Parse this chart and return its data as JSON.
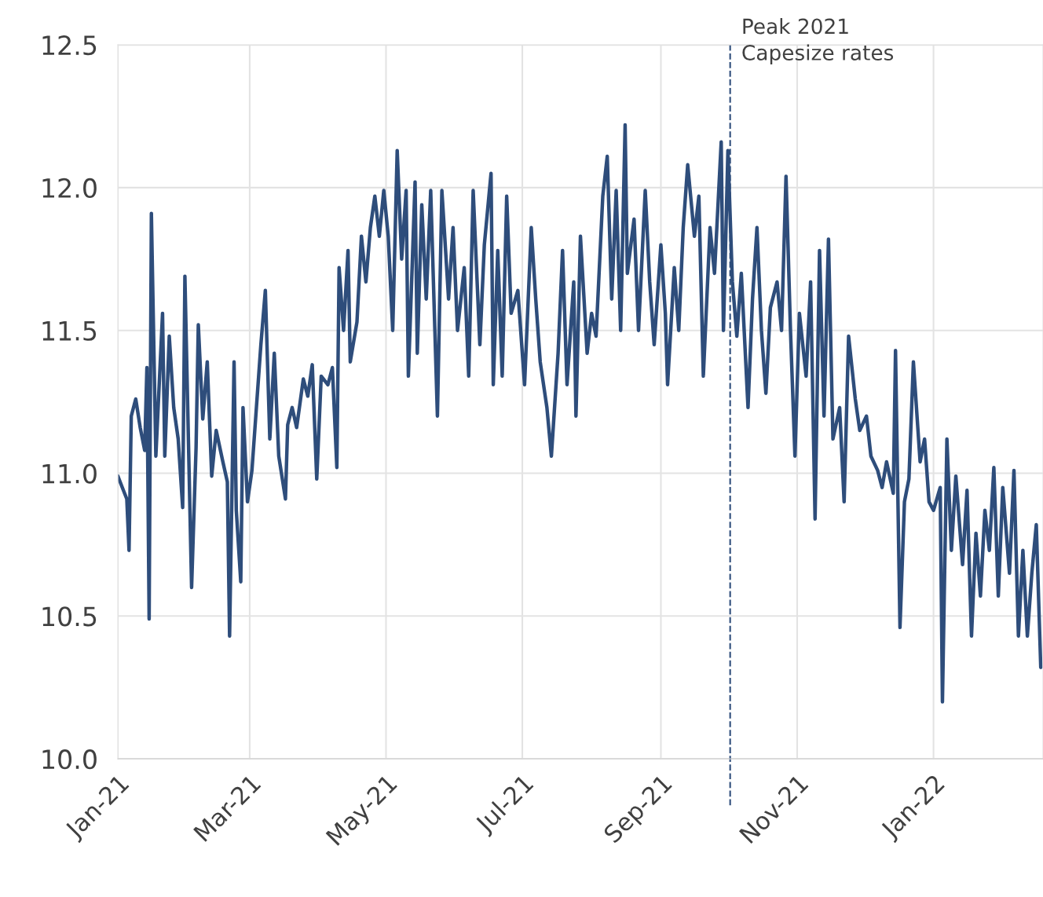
{
  "chart_data": {
    "type": "line",
    "x": [
      "2021-01-01",
      "2021-01-03",
      "2021-01-05",
      "2021-01-06",
      "2021-01-07",
      "2021-01-09",
      "2021-01-11",
      "2021-01-13",
      "2021-01-14",
      "2021-01-15",
      "2021-01-16",
      "2021-01-18",
      "2021-01-21",
      "2021-01-22",
      "2021-01-24",
      "2021-01-26",
      "2021-01-28",
      "2021-01-30",
      "2021-01-31",
      "2021-02-03",
      "2021-02-05",
      "2021-02-06",
      "2021-02-08",
      "2021-02-10",
      "2021-02-12",
      "2021-02-14",
      "2021-02-17",
      "2021-02-19",
      "2021-02-20",
      "2021-02-22",
      "2021-02-23",
      "2021-02-25",
      "2021-02-26",
      "2021-02-28",
      "2021-03-02",
      "2021-03-04",
      "2021-03-06",
      "2021-03-08",
      "2021-03-10",
      "2021-03-12",
      "2021-03-14",
      "2021-03-17",
      "2021-03-18",
      "2021-03-20",
      "2021-03-22",
      "2021-03-25",
      "2021-03-27",
      "2021-03-29",
      "2021-03-31",
      "2021-04-02",
      "2021-04-05",
      "2021-04-07",
      "2021-04-09",
      "2021-04-10",
      "2021-04-12",
      "2021-04-14",
      "2021-04-15",
      "2021-04-18",
      "2021-04-20",
      "2021-04-22",
      "2021-04-24",
      "2021-04-26",
      "2021-04-28",
      "2021-04-30",
      "2021-05-02",
      "2021-05-04",
      "2021-05-06",
      "2021-05-08",
      "2021-05-10",
      "2021-05-11",
      "2021-05-14",
      "2021-05-15",
      "2021-05-17",
      "2021-05-19",
      "2021-05-21",
      "2021-05-24",
      "2021-05-26",
      "2021-05-29",
      "2021-05-31",
      "2021-06-02",
      "2021-06-05",
      "2021-06-07",
      "2021-06-09",
      "2021-06-12",
      "2021-06-14",
      "2021-06-17",
      "2021-06-18",
      "2021-06-20",
      "2021-06-22",
      "2021-06-24",
      "2021-06-26",
      "2021-06-29",
      "2021-07-02",
      "2021-07-05",
      "2021-07-07",
      "2021-07-09",
      "2021-07-12",
      "2021-07-14",
      "2021-07-17",
      "2021-07-19",
      "2021-07-21",
      "2021-07-24",
      "2021-07-25",
      "2021-07-27",
      "2021-07-30",
      "2021-08-01",
      "2021-08-03",
      "2021-08-06",
      "2021-08-08",
      "2021-08-10",
      "2021-08-12",
      "2021-08-14",
      "2021-08-16",
      "2021-08-17",
      "2021-08-20",
      "2021-08-22",
      "2021-08-25",
      "2021-08-27",
      "2021-08-29",
      "2021-09-01",
      "2021-09-03",
      "2021-09-04",
      "2021-09-07",
      "2021-09-09",
      "2021-09-11",
      "2021-09-13",
      "2021-09-16",
      "2021-09-18",
      "2021-09-20",
      "2021-09-23",
      "2021-09-25",
      "2021-09-28",
      "2021-09-29",
      "2021-10-01",
      "2021-10-03",
      "2021-10-05",
      "2021-10-07",
      "2021-10-10",
      "2021-10-12",
      "2021-10-14",
      "2021-10-16",
      "2021-10-18",
      "2021-10-20",
      "2021-10-23",
      "2021-10-25",
      "2021-10-27",
      "2021-10-29",
      "2021-10-31",
      "2021-11-02",
      "2021-11-05",
      "2021-11-07",
      "2021-11-09",
      "2021-11-11",
      "2021-11-13",
      "2021-11-15",
      "2021-11-17",
      "2021-11-20",
      "2021-11-22",
      "2021-11-24",
      "2021-11-27",
      "2021-11-29",
      "2021-12-02",
      "2021-12-04",
      "2021-12-07",
      "2021-12-09",
      "2021-12-11",
      "2021-12-14",
      "2021-12-15",
      "2021-12-17",
      "2021-12-19",
      "2021-12-21",
      "2021-12-23",
      "2021-12-26",
      "2021-12-28",
      "2021-12-30",
      "2022-01-01",
      "2022-01-04",
      "2022-01-05",
      "2022-01-07",
      "2022-01-09",
      "2022-01-11",
      "2022-01-14",
      "2022-01-16",
      "2022-01-18",
      "2022-01-20",
      "2022-01-22",
      "2022-01-24",
      "2022-01-26",
      "2022-01-28",
      "2022-01-30",
      "2022-02-01",
      "2022-02-04",
      "2022-02-06",
      "2022-02-08",
      "2022-02-10",
      "2022-02-12",
      "2022-02-14",
      "2022-02-16",
      "2022-02-18"
    ],
    "series": [
      {
        "color": "#2e4d7b",
        "values": [
          10.99,
          10.95,
          10.91,
          10.73,
          11.2,
          11.26,
          11.16,
          11.08,
          11.37,
          10.49,
          11.91,
          11.06,
          11.56,
          11.06,
          11.48,
          11.23,
          11.12,
          10.88,
          11.69,
          10.6,
          11.09,
          11.52,
          11.19,
          11.39,
          10.99,
          11.15,
          11.04,
          10.97,
          10.43,
          11.39,
          10.87,
          10.62,
          11.23,
          10.9,
          11.01,
          11.23,
          11.45,
          11.64,
          11.12,
          11.42,
          11.06,
          10.91,
          11.17,
          11.23,
          11.16,
          11.33,
          11.27,
          11.38,
          10.98,
          11.34,
          11.31,
          11.37,
          11.02,
          11.72,
          11.5,
          11.78,
          11.39,
          11.53,
          11.83,
          11.67,
          11.86,
          11.97,
          11.83,
          11.99,
          11.83,
          11.5,
          12.13,
          11.75,
          11.99,
          11.34,
          12.02,
          11.42,
          11.94,
          11.61,
          11.99,
          11.2,
          11.99,
          11.61,
          11.86,
          11.5,
          11.72,
          11.34,
          11.99,
          11.45,
          11.8,
          12.05,
          11.31,
          11.78,
          11.34,
          11.97,
          11.56,
          11.64,
          11.31,
          11.86,
          11.61,
          11.39,
          11.23,
          11.06,
          11.42,
          11.78,
          11.31,
          11.67,
          11.2,
          11.83,
          11.42,
          11.56,
          11.48,
          11.97,
          12.11,
          11.61,
          11.99,
          11.5,
          12.22,
          11.7,
          11.89,
          11.5,
          11.99,
          11.67,
          11.45,
          11.8,
          11.56,
          11.31,
          11.72,
          11.5,
          11.86,
          12.08,
          11.83,
          11.97,
          11.34,
          11.86,
          11.7,
          12.16,
          11.5,
          12.13,
          11.67,
          11.48,
          11.7,
          11.23,
          11.61,
          11.86,
          11.5,
          11.28,
          11.58,
          11.67,
          11.5,
          12.04,
          11.5,
          11.06,
          11.56,
          11.34,
          11.67,
          10.84,
          11.78,
          11.2,
          11.82,
          11.12,
          11.23,
          10.9,
          11.48,
          11.26,
          11.15,
          11.2,
          11.06,
          11.01,
          10.95,
          11.04,
          10.93,
          11.43,
          10.46,
          10.9,
          10.98,
          11.39,
          11.04,
          11.12,
          10.9,
          10.87,
          10.95,
          10.2,
          11.12,
          10.73,
          10.99,
          10.68,
          10.94,
          10.43,
          10.79,
          10.57,
          10.87,
          10.73,
          11.02,
          10.57,
          10.95,
          10.65,
          11.01,
          10.43,
          10.73,
          10.43,
          10.65,
          10.82,
          10.32
        ]
      }
    ],
    "xlim": [
      "2021-01-01",
      "2022-02-19"
    ],
    "xticks": [
      {
        "value": "2021-01-01",
        "label": "Jan-21"
      },
      {
        "value": "2021-03-01",
        "label": "Mar-21"
      },
      {
        "value": "2021-05-01",
        "label": "May-21"
      },
      {
        "value": "2021-07-01",
        "label": "Jul-21"
      },
      {
        "value": "2021-09-01",
        "label": "Sep-21"
      },
      {
        "value": "2021-11-01",
        "label": "Nov-21"
      },
      {
        "value": "2022-01-01",
        "label": "Jan-22"
      }
    ],
    "ylim": [
      10,
      12.5
    ],
    "yticks": [
      {
        "value": 10,
        "label": "10.0"
      },
      {
        "value": 10.5,
        "label": "10.5"
      },
      {
        "value": 11,
        "label": "11.0"
      },
      {
        "value": 11.5,
        "label": "11.5"
      },
      {
        "value": 12,
        "label": "12.0"
      },
      {
        "value": 12.5,
        "label": "12.5"
      }
    ],
    "ref_lines": [
      {
        "axis": "x",
        "value": "2021-10-02",
        "label": "Peak 2021\nCapesize rates",
        "color": "#2e4d7b",
        "line_style": "dashed"
      }
    ],
    "grid": true,
    "marker": "none",
    "line_style": "solid"
  }
}
